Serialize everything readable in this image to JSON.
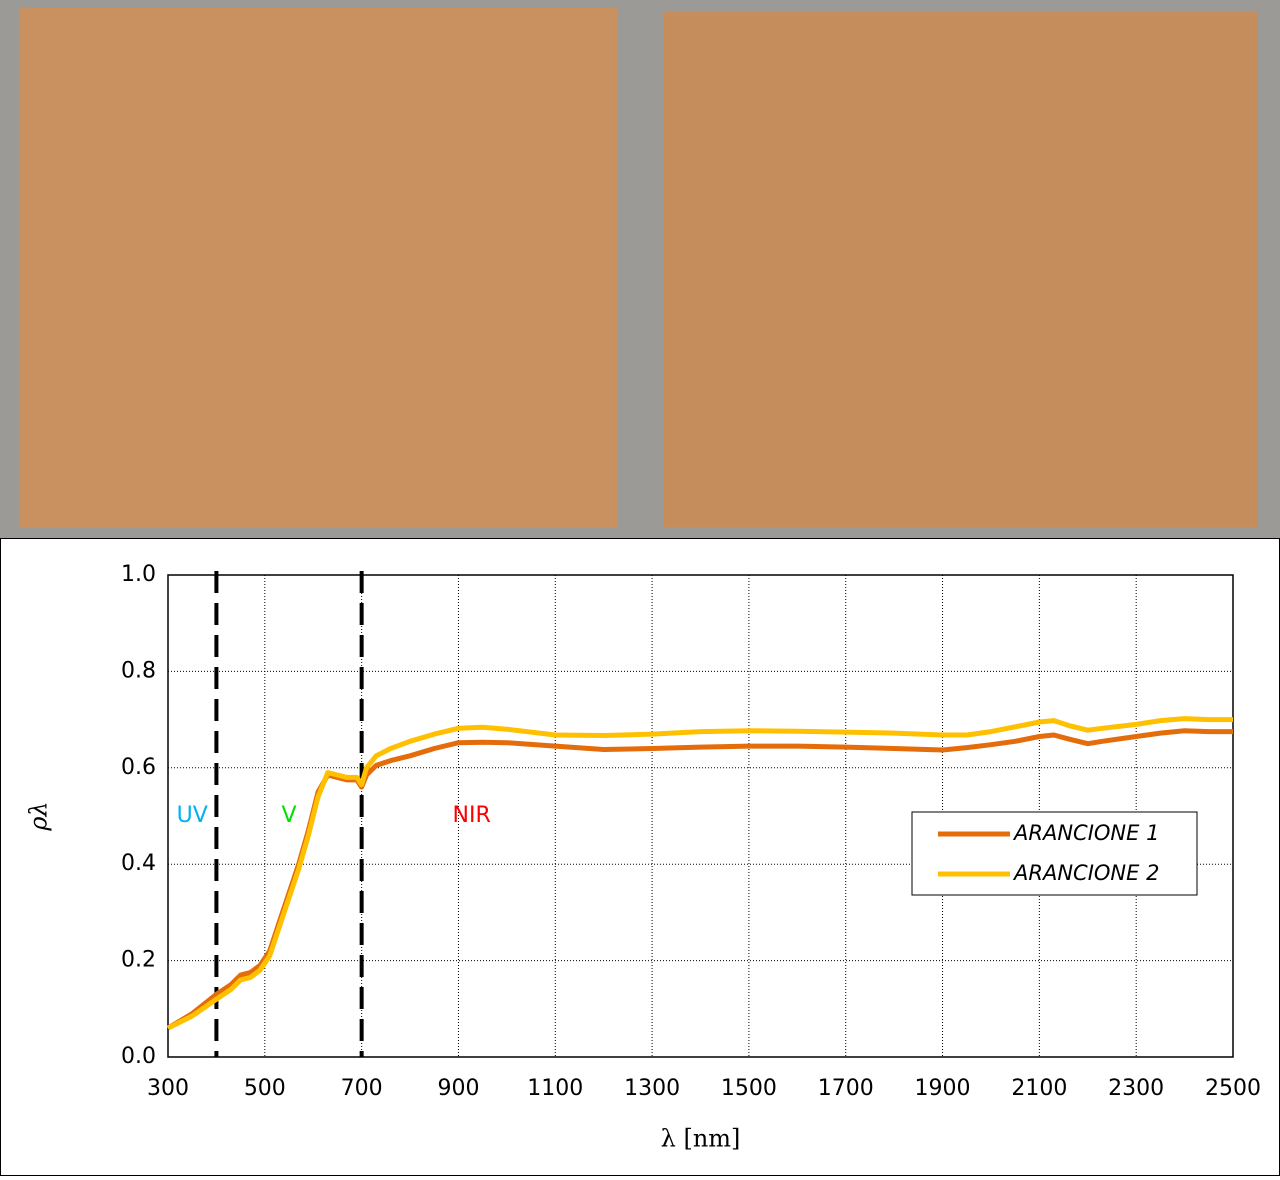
{
  "chart_data": {
    "type": "line",
    "x_label": "λ [nm]",
    "y_label": "ρλ",
    "xlim": [
      300,
      2500
    ],
    "ylim": [
      0,
      1
    ],
    "xticks": [
      300,
      500,
      700,
      900,
      1100,
      1300,
      1500,
      1700,
      1900,
      2100,
      2300,
      2500
    ],
    "yticks": [
      {
        "value": 0,
        "label": "0.0"
      },
      0.2,
      0.4,
      0.6,
      0.8,
      {
        "value": 1,
        "label": "1.0"
      }
    ],
    "grid": true,
    "region_boundaries": [
      400,
      700
    ],
    "region_labels": [
      {
        "text": "UV",
        "color": "#00b0f0"
      },
      {
        "text": "V",
        "color": "#00e000"
      },
      {
        "text": "NIR",
        "color": "#ff0000"
      }
    ],
    "legend": "right",
    "x": [
      300,
      350,
      400,
      430,
      450,
      470,
      490,
      510,
      530,
      550,
      570,
      590,
      610,
      630,
      650,
      670,
      690,
      700,
      710,
      730,
      760,
      800,
      850,
      900,
      950,
      1000,
      1100,
      1200,
      1300,
      1400,
      1500,
      1600,
      1700,
      1800,
      1900,
      1950,
      2000,
      2050,
      2100,
      2130,
      2160,
      2200,
      2230,
      2300,
      2350,
      2400,
      2450,
      2500
    ],
    "series": [
      {
        "name": "ARANCIONE 1",
        "color": "#e46c0a",
        "values": [
          0.06,
          0.09,
          0.13,
          0.15,
          0.17,
          0.175,
          0.19,
          0.22,
          0.28,
          0.34,
          0.4,
          0.47,
          0.55,
          0.585,
          0.58,
          0.575,
          0.575,
          0.56,
          0.585,
          0.605,
          0.615,
          0.625,
          0.64,
          0.652,
          0.653,
          0.652,
          0.645,
          0.638,
          0.64,
          0.643,
          0.645,
          0.645,
          0.643,
          0.64,
          0.637,
          0.642,
          0.648,
          0.655,
          0.665,
          0.668,
          0.66,
          0.65,
          0.655,
          0.665,
          0.672,
          0.677,
          0.675,
          0.675
        ]
      },
      {
        "name": "ARANCIONE 2",
        "color": "#ffc000",
        "values": [
          0.06,
          0.085,
          0.12,
          0.14,
          0.16,
          0.165,
          0.18,
          0.21,
          0.27,
          0.33,
          0.39,
          0.46,
          0.54,
          0.59,
          0.585,
          0.58,
          0.58,
          0.565,
          0.6,
          0.625,
          0.64,
          0.655,
          0.67,
          0.682,
          0.684,
          0.68,
          0.668,
          0.667,
          0.67,
          0.675,
          0.677,
          0.676,
          0.674,
          0.672,
          0.668,
          0.668,
          0.675,
          0.685,
          0.695,
          0.698,
          0.688,
          0.678,
          0.682,
          0.69,
          0.698,
          0.702,
          0.7,
          0.7
        ]
      }
    ]
  }
}
